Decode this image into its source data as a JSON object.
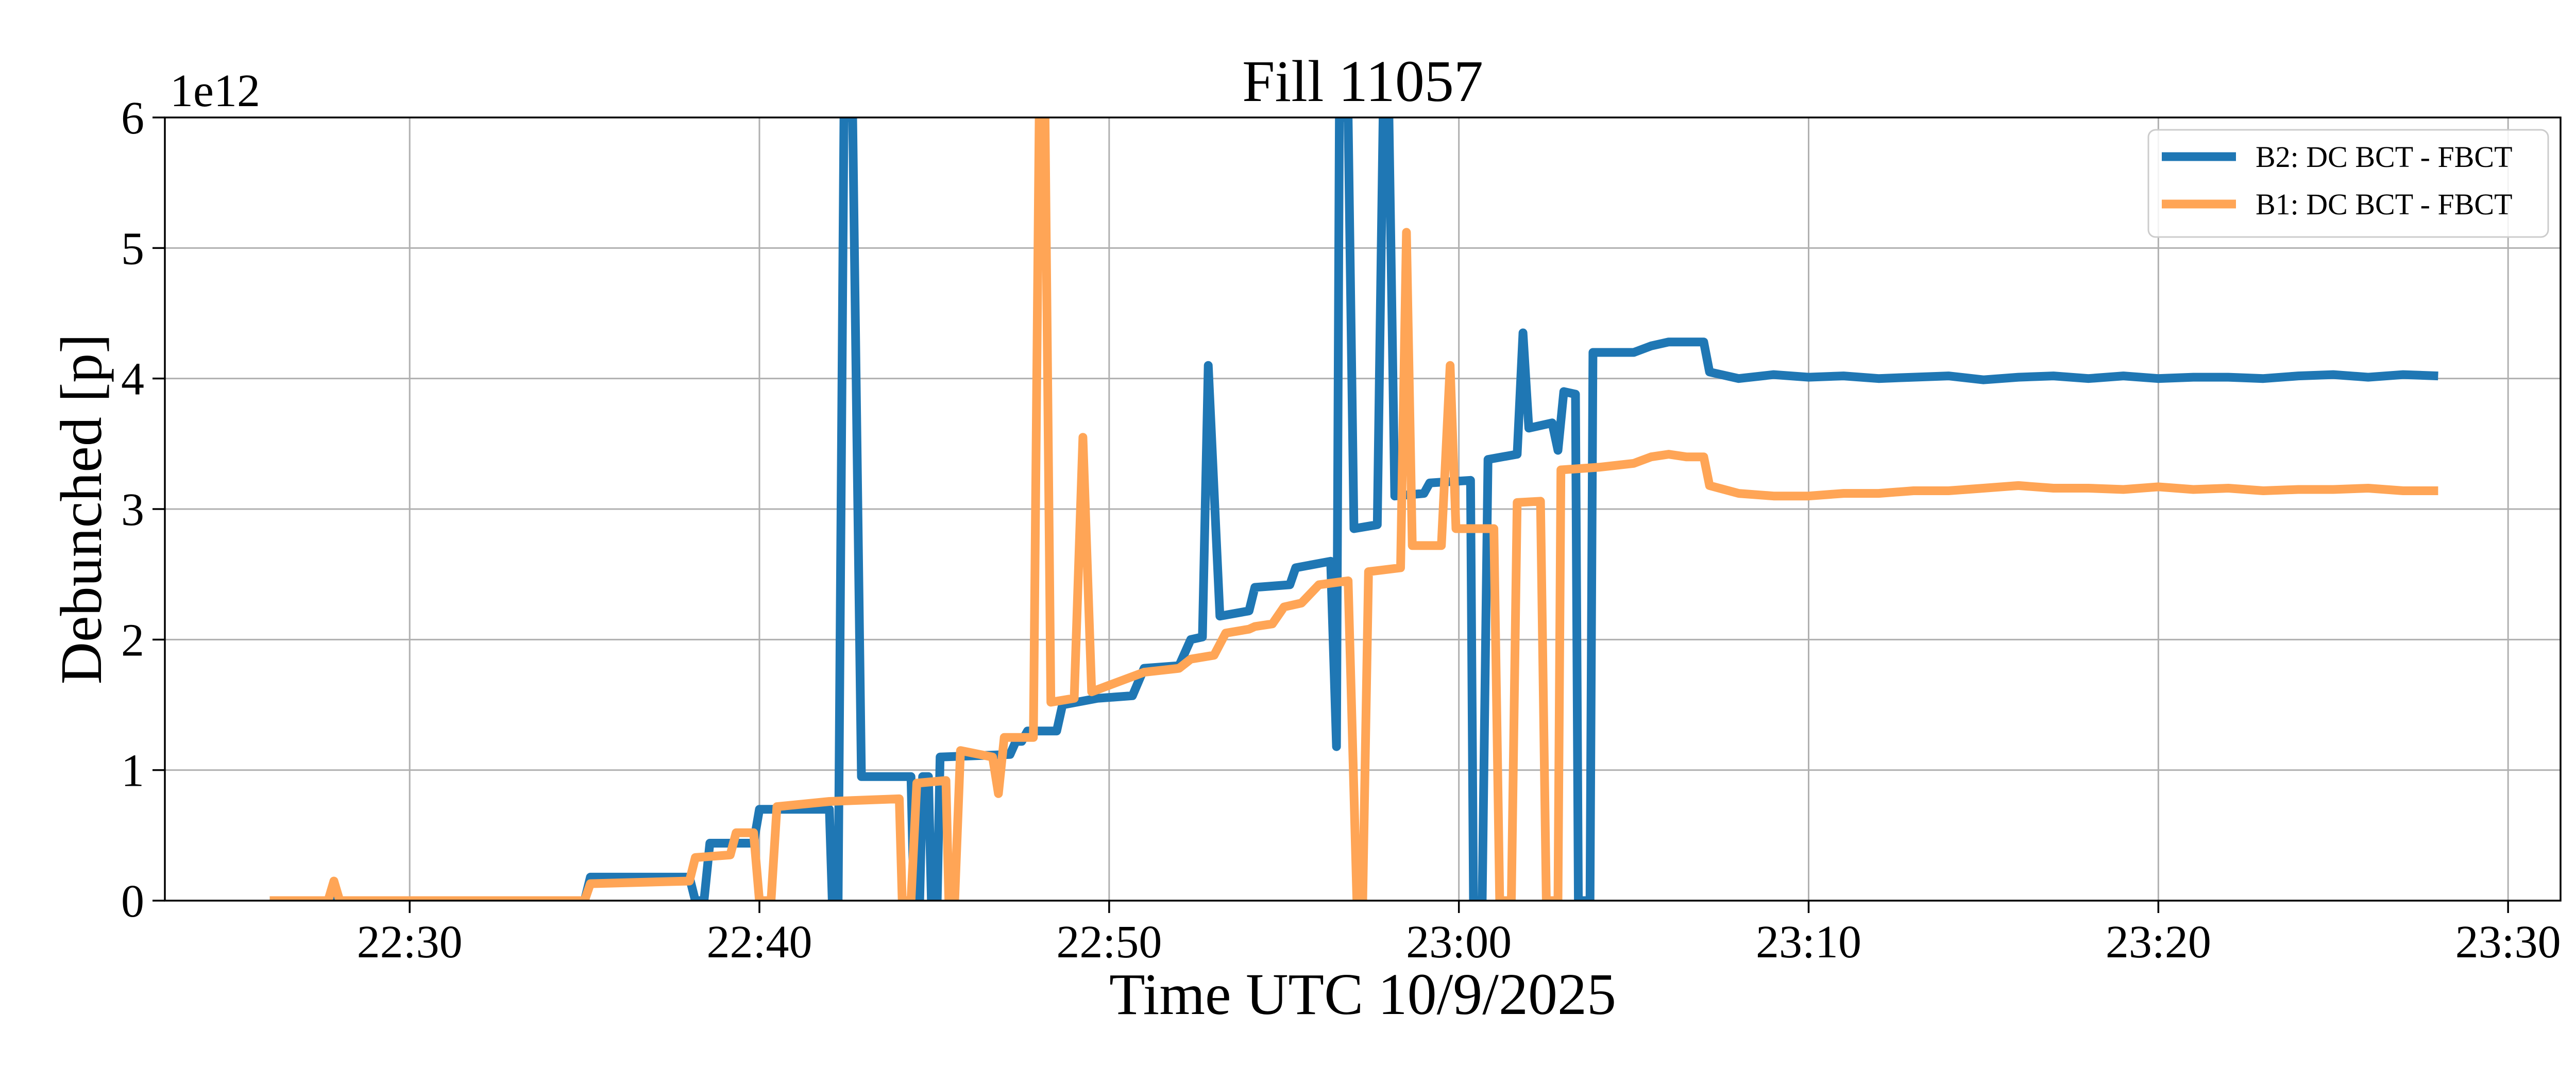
{
  "chart_data": {
    "type": "line",
    "title": "Fill 11057",
    "xlabel": "Time UTC 10/9/2025",
    "ylabel": "Debunched [p]",
    "y_offset_label": "1e12",
    "xlim": [
      "22:23:00",
      "23:31:30"
    ],
    "ylim": [
      0,
      6
    ],
    "x_ticks": [
      "22:30",
      "22:40",
      "22:50",
      "23:00",
      "23:10",
      "23:20",
      "23:30"
    ],
    "y_ticks": [
      "0",
      "1",
      "2",
      "3",
      "4",
      "5",
      "6"
    ],
    "grid": true,
    "legend_position": "top-right",
    "series": [
      {
        "name": "B2: DC BCT - FBCT",
        "color": "#1f77b4",
        "points": [
          [
            "22:26:00",
            0
          ],
          [
            "22:35:00",
            0
          ],
          [
            "22:35:10",
            0.18
          ],
          [
            "22:38:00",
            0.18
          ],
          [
            "22:38:10",
            0
          ],
          [
            "22:38:25",
            0
          ],
          [
            "22:38:35",
            0.44
          ],
          [
            "22:39:50",
            0.44
          ],
          [
            "22:40:00",
            0.7
          ],
          [
            "22:42:00",
            0.7
          ],
          [
            "22:42:05",
            0
          ],
          [
            "22:42:15",
            0
          ],
          [
            "22:42:25",
            6.0
          ],
          [
            "22:42:40",
            6.0
          ],
          [
            "22:42:55",
            0.95
          ],
          [
            "22:44:20",
            0.95
          ],
          [
            "22:44:25",
            0
          ],
          [
            "22:44:35",
            0
          ],
          [
            "22:44:40",
            0.95
          ],
          [
            "22:44:50",
            0.95
          ],
          [
            "22:44:55",
            0
          ],
          [
            "22:45:05",
            0
          ],
          [
            "22:45:10",
            1.1
          ],
          [
            "22:47:10",
            1.12
          ],
          [
            "22:47:20",
            1.22
          ],
          [
            "22:47:30",
            1.22
          ],
          [
            "22:47:40",
            1.3
          ],
          [
            "22:48:30",
            1.3
          ],
          [
            "22:48:40",
            1.5
          ],
          [
            "22:49:40",
            1.55
          ],
          [
            "22:50:40",
            1.57
          ],
          [
            "22:51:00",
            1.78
          ],
          [
            "22:52:00",
            1.8
          ],
          [
            "22:52:20",
            2.0
          ],
          [
            "22:52:40",
            2.02
          ],
          [
            "22:52:50",
            4.1
          ],
          [
            "22:53:10",
            2.18
          ],
          [
            "22:54:00",
            2.22
          ],
          [
            "22:54:10",
            2.4
          ],
          [
            "22:55:10",
            2.42
          ],
          [
            "22:55:20",
            2.55
          ],
          [
            "22:56:20",
            2.6
          ],
          [
            "22:56:30",
            1.18
          ],
          [
            "22:56:35",
            6.0
          ],
          [
            "22:56:50",
            6.0
          ],
          [
            "22:57:00",
            2.85
          ],
          [
            "22:57:40",
            2.88
          ],
          [
            "22:57:50",
            6.0
          ],
          [
            "22:58:00",
            6.0
          ],
          [
            "22:58:10",
            3.1
          ],
          [
            "22:59:00",
            3.12
          ],
          [
            "22:59:10",
            3.2
          ],
          [
            "23:00:20",
            3.22
          ],
          [
            "23:00:25",
            0
          ],
          [
            "23:00:40",
            0
          ],
          [
            "23:00:50",
            3.38
          ],
          [
            "23:01:40",
            3.42
          ],
          [
            "23:01:50",
            4.35
          ],
          [
            "23:02:00",
            3.62
          ],
          [
            "23:02:40",
            3.66
          ],
          [
            "23:02:50",
            3.45
          ],
          [
            "23:03:00",
            3.9
          ],
          [
            "23:03:20",
            3.88
          ],
          [
            "23:03:25",
            0
          ],
          [
            "23:03:45",
            0
          ],
          [
            "23:03:50",
            4.2
          ],
          [
            "23:05:00",
            4.2
          ],
          [
            "23:05:30",
            4.25
          ],
          [
            "23:06:00",
            4.28
          ],
          [
            "23:07:00",
            4.28
          ],
          [
            "23:07:10",
            4.05
          ],
          [
            "23:08:00",
            4.0
          ],
          [
            "23:09:00",
            4.03
          ],
          [
            "23:10:00",
            4.01
          ],
          [
            "23:11:00",
            4.02
          ],
          [
            "23:12:00",
            4.0
          ],
          [
            "23:13:00",
            4.01
          ],
          [
            "23:14:00",
            4.02
          ],
          [
            "23:15:00",
            3.99
          ],
          [
            "23:16:00",
            4.01
          ],
          [
            "23:17:00",
            4.02
          ],
          [
            "23:18:00",
            4.0
          ],
          [
            "23:19:00",
            4.02
          ],
          [
            "23:20:00",
            4.0
          ],
          [
            "23:21:00",
            4.01
          ],
          [
            "23:22:00",
            4.01
          ],
          [
            "23:23:00",
            4.0
          ],
          [
            "23:24:00",
            4.02
          ],
          [
            "23:25:00",
            4.03
          ],
          [
            "23:26:00",
            4.01
          ],
          [
            "23:27:00",
            4.03
          ],
          [
            "23:28:00",
            4.02
          ]
        ]
      },
      {
        "name": "B1: DC BCT - FBCT",
        "color": "#ffa556",
        "points": [
          [
            "22:26:00",
            0
          ],
          [
            "22:27:40",
            0
          ],
          [
            "22:27:50",
            0.15
          ],
          [
            "22:28:00",
            0
          ],
          [
            "22:35:00",
            0
          ],
          [
            "22:35:10",
            0.13
          ],
          [
            "22:38:00",
            0.15
          ],
          [
            "22:38:10",
            0.33
          ],
          [
            "22:39:10",
            0.35
          ],
          [
            "22:39:20",
            0.52
          ],
          [
            "22:39:50",
            0.52
          ],
          [
            "22:40:00",
            0
          ],
          [
            "22:40:20",
            0
          ],
          [
            "22:40:30",
            0.72
          ],
          [
            "22:42:00",
            0.76
          ],
          [
            "22:43:00",
            0.77
          ],
          [
            "22:44:00",
            0.78
          ],
          [
            "22:44:05",
            0
          ],
          [
            "22:44:20",
            0
          ],
          [
            "22:44:30",
            0.9
          ],
          [
            "22:45:20",
            0.92
          ],
          [
            "22:45:25",
            0
          ],
          [
            "22:45:35",
            0
          ],
          [
            "22:45:45",
            1.15
          ],
          [
            "22:46:40",
            1.1
          ],
          [
            "22:46:50",
            0.82
          ],
          [
            "22:47:00",
            1.25
          ],
          [
            "22:47:50",
            1.25
          ],
          [
            "22:48:00",
            6.0
          ],
          [
            "22:48:10",
            6.0
          ],
          [
            "22:48:20",
            1.52
          ],
          [
            "22:49:00",
            1.55
          ],
          [
            "22:49:15",
            3.55
          ],
          [
            "22:49:30",
            1.6
          ],
          [
            "22:50:00",
            1.65
          ],
          [
            "22:50:30",
            1.7
          ],
          [
            "22:51:00",
            1.75
          ],
          [
            "22:52:00",
            1.78
          ],
          [
            "22:52:20",
            1.85
          ],
          [
            "22:53:00",
            1.88
          ],
          [
            "22:53:20",
            2.05
          ],
          [
            "22:54:00",
            2.08
          ],
          [
            "22:54:10",
            2.1
          ],
          [
            "22:54:40",
            2.12
          ],
          [
            "22:55:00",
            2.25
          ],
          [
            "22:55:30",
            2.28
          ],
          [
            "22:56:00",
            2.42
          ],
          [
            "22:56:50",
            2.45
          ],
          [
            "22:57:05",
            0
          ],
          [
            "22:57:15",
            0
          ],
          [
            "22:57:25",
            2.52
          ],
          [
            "22:58:20",
            2.55
          ],
          [
            "22:58:30",
            5.12
          ],
          [
            "22:58:40",
            2.72
          ],
          [
            "22:59:30",
            2.72
          ],
          [
            "22:59:45",
            4.1
          ],
          [
            "22:59:55",
            2.85
          ],
          [
            "23:00:40",
            2.85
          ],
          [
            "23:01:00",
            2.85
          ],
          [
            "23:01:10",
            0
          ],
          [
            "23:01:30",
            0
          ],
          [
            "23:01:40",
            3.05
          ],
          [
            "23:02:20",
            3.06
          ],
          [
            "23:02:30",
            0
          ],
          [
            "23:02:50",
            0
          ],
          [
            "23:02:55",
            3.3
          ],
          [
            "23:04:00",
            3.32
          ],
          [
            "23:05:00",
            3.35
          ],
          [
            "23:05:30",
            3.4
          ],
          [
            "23:06:00",
            3.42
          ],
          [
            "23:06:30",
            3.4
          ],
          [
            "23:07:00",
            3.4
          ],
          [
            "23:07:10",
            3.18
          ],
          [
            "23:08:00",
            3.12
          ],
          [
            "23:09:00",
            3.1
          ],
          [
            "23:10:00",
            3.1
          ],
          [
            "23:11:00",
            3.12
          ],
          [
            "23:12:00",
            3.12
          ],
          [
            "23:13:00",
            3.14
          ],
          [
            "23:14:00",
            3.14
          ],
          [
            "23:15:00",
            3.16
          ],
          [
            "23:16:00",
            3.18
          ],
          [
            "23:17:00",
            3.16
          ],
          [
            "23:18:00",
            3.16
          ],
          [
            "23:19:00",
            3.15
          ],
          [
            "23:20:00",
            3.17
          ],
          [
            "23:21:00",
            3.15
          ],
          [
            "23:22:00",
            3.16
          ],
          [
            "23:23:00",
            3.14
          ],
          [
            "23:24:00",
            3.15
          ],
          [
            "23:25:00",
            3.15
          ],
          [
            "23:26:00",
            3.16
          ],
          [
            "23:27:00",
            3.14
          ],
          [
            "23:28:00",
            3.14
          ]
        ]
      }
    ]
  }
}
